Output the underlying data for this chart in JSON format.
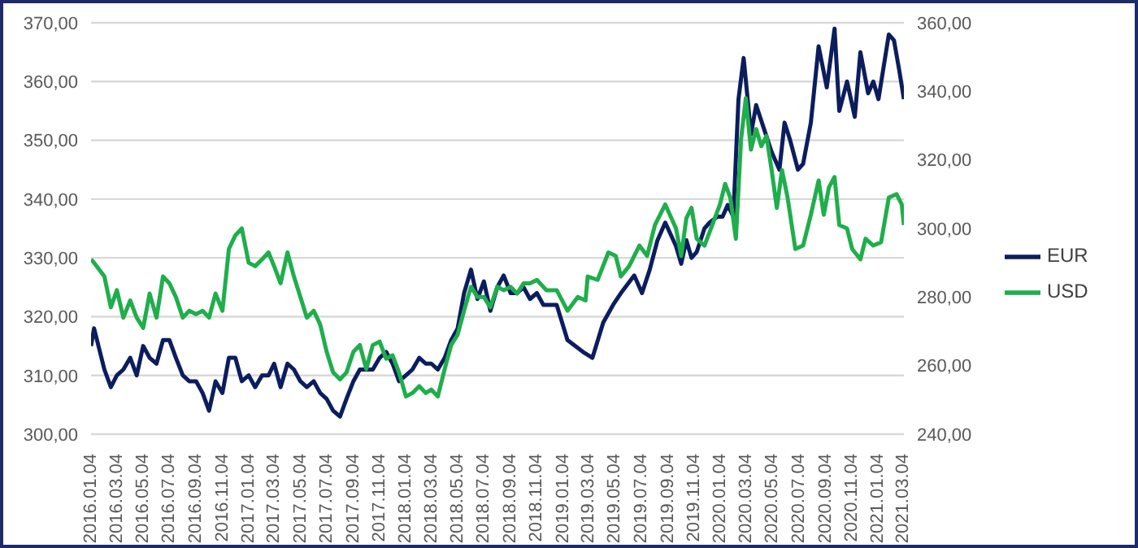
{
  "chart_data": {
    "type": "line",
    "xlim": [
      "2016-01-04",
      "2021-03-05"
    ],
    "xticks": [
      {
        "value": "2016-01-04",
        "label": "2016.01.04"
      },
      {
        "value": "2016-03-04",
        "label": "2016.03.04"
      },
      {
        "value": "2016-05-04",
        "label": "2016.05.04"
      },
      {
        "value": "2016-07-04",
        "label": "2016.07.04"
      },
      {
        "value": "2016-09-04",
        "label": "2016.09.04"
      },
      {
        "value": "2016-11-04",
        "label": "2016.11.04"
      },
      {
        "value": "2017-01-04",
        "label": "2017.01.04"
      },
      {
        "value": "2017-03-04",
        "label": "2017.03.04"
      },
      {
        "value": "2017-05-04",
        "label": "2017.05.04"
      },
      {
        "value": "2017-07-04",
        "label": "2017.07.04"
      },
      {
        "value": "2017-09-04",
        "label": "2017.09.04"
      },
      {
        "value": "2017-11-04",
        "label": "2017.11.04"
      },
      {
        "value": "2018-01-04",
        "label": "2018.01.04"
      },
      {
        "value": "2018-03-04",
        "label": "2018.03.04"
      },
      {
        "value": "2018-05-04",
        "label": "2018.05.04"
      },
      {
        "value": "2018-07-04",
        "label": "2018.07.04"
      },
      {
        "value": "2018-09-04",
        "label": "2018.09.04"
      },
      {
        "value": "2018-11-04",
        "label": "2018.11.04"
      },
      {
        "value": "2019-01-04",
        "label": "2019.01.04"
      },
      {
        "value": "2019-03-04",
        "label": "2019.03.04"
      },
      {
        "value": "2019-05-04",
        "label": "2019.05.04"
      },
      {
        "value": "2019-07-04",
        "label": "2019.07.04"
      },
      {
        "value": "2019-09-04",
        "label": "2019.09.04"
      },
      {
        "value": "2019-11-04",
        "label": "2019.11.04"
      },
      {
        "value": "2020-01-04",
        "label": "2020.01.04"
      },
      {
        "value": "2020-03-04",
        "label": "2020.03.04"
      },
      {
        "value": "2020-05-04",
        "label": "2020.05.04"
      },
      {
        "value": "2020-07-04",
        "label": "2020.07.04"
      },
      {
        "value": "2020-09-04",
        "label": "2020.09.04"
      },
      {
        "value": "2020-11-04",
        "label": "2020.11.04"
      },
      {
        "value": "2021-01-04",
        "label": "2021.01.04"
      },
      {
        "value": "2021-03-04",
        "label": "2021.03.04"
      }
    ],
    "ylim": [
      300,
      370
    ],
    "yticks": [
      {
        "value": 300,
        "label": "300,00"
      },
      {
        "value": 310,
        "label": "310,00"
      },
      {
        "value": 320,
        "label": "320,00"
      },
      {
        "value": 330,
        "label": "330,00"
      },
      {
        "value": 340,
        "label": "340,00"
      },
      {
        "value": 350,
        "label": "350,00"
      },
      {
        "value": 360,
        "label": "360,00"
      },
      {
        "value": 370,
        "label": "370,00"
      }
    ],
    "y2lim": [
      240,
      360
    ],
    "y2ticks": [
      {
        "value": 240,
        "label": "240,00"
      },
      {
        "value": 260,
        "label": "260,00"
      },
      {
        "value": 280,
        "label": "280,00"
      },
      {
        "value": 300,
        "label": "300,00"
      },
      {
        "value": 320,
        "label": "320,00"
      },
      {
        "value": 340,
        "label": "340,00"
      },
      {
        "value": 360,
        "label": "360,00"
      }
    ],
    "grid": "y",
    "legend": "right",
    "marker": "none",
    "series": [
      {
        "name": "EUR",
        "color": "#0c1d5e",
        "x": [
          "2016-01-04",
          "2016-01-11",
          "2016-02-04",
          "2016-02-19",
          "2016-03-04",
          "2016-03-19",
          "2016-04-04",
          "2016-04-19",
          "2016-05-04",
          "2016-05-19",
          "2016-06-04",
          "2016-06-19",
          "2016-07-04",
          "2016-07-19",
          "2016-08-04",
          "2016-08-19",
          "2016-09-04",
          "2016-09-19",
          "2016-10-04",
          "2016-10-19",
          "2016-11-04",
          "2016-11-19",
          "2016-12-04",
          "2016-12-19",
          "2017-01-04",
          "2017-01-19",
          "2017-02-04",
          "2017-02-19",
          "2017-03-04",
          "2017-03-19",
          "2017-04-04",
          "2017-04-19",
          "2017-05-04",
          "2017-05-19",
          "2017-06-04",
          "2017-06-19",
          "2017-07-04",
          "2017-07-19",
          "2017-08-04",
          "2017-08-19",
          "2017-09-04",
          "2017-09-19",
          "2017-10-04",
          "2017-10-19",
          "2017-11-04",
          "2017-11-19",
          "2017-12-04",
          "2017-12-19",
          "2018-01-04",
          "2018-01-19",
          "2018-02-04",
          "2018-02-19",
          "2018-03-04",
          "2018-03-19",
          "2018-04-04",
          "2018-04-19",
          "2018-05-04",
          "2018-05-19",
          "2018-06-04",
          "2018-06-19",
          "2018-07-04",
          "2018-07-19",
          "2018-08-04",
          "2018-08-19",
          "2018-09-04",
          "2018-09-19",
          "2018-10-04",
          "2018-10-19",
          "2018-11-04",
          "2018-11-19",
          "2018-12-20",
          "2019-01-14",
          "2019-02-19",
          "2019-03-13",
          "2019-04-07",
          "2019-04-30",
          "2019-05-18",
          "2019-06-18",
          "2019-07-06",
          "2019-07-24",
          "2019-08-11",
          "2019-08-29",
          "2019-09-23",
          "2019-10-05",
          "2019-10-17",
          "2019-10-29",
          "2019-11-10",
          "2019-11-28",
          "2019-12-10",
          "2019-12-28",
          "2020-01-09",
          "2020-01-21",
          "2020-02-03",
          "2020-02-15",
          "2020-02-27",
          "2020-03-06",
          "2020-03-15",
          "2020-03-27",
          "2020-04-14",
          "2020-05-02",
          "2020-05-20",
          "2020-06-01",
          "2020-06-14",
          "2020-07-02",
          "2020-07-14",
          "2020-08-01",
          "2020-08-19",
          "2020-09-07",
          "2020-09-25",
          "2020-10-06",
          "2020-10-24",
          "2020-11-11",
          "2020-11-24",
          "2020-12-12",
          "2020-12-24",
          "2021-01-05",
          "2021-01-29",
          "2021-02-10",
          "2021-02-22",
          "2021-03-05"
        ],
        "values": [
          315,
          318,
          311,
          308,
          310,
          311,
          313,
          310,
          315,
          313,
          312,
          316,
          316,
          313,
          310,
          309,
          309,
          307,
          304,
          309,
          307,
          313,
          313,
          309,
          310,
          308,
          310,
          310,
          312,
          308,
          312,
          311,
          309,
          308,
          309,
          307,
          306,
          304,
          303,
          306,
          309,
          311,
          311,
          311,
          313,
          314,
          312,
          309,
          310,
          311,
          313,
          312,
          312,
          311,
          313,
          316,
          318,
          324,
          328,
          323,
          326,
          321,
          325,
          327,
          324,
          324,
          325,
          323,
          324,
          322,
          322,
          316,
          314,
          313,
          319,
          322,
          324,
          327,
          324,
          328,
          333,
          336,
          332,
          329,
          333,
          330,
          331,
          335,
          336,
          337,
          337,
          339,
          337,
          357,
          364,
          358,
          351,
          356,
          352,
          348,
          345,
          353,
          350,
          345,
          346,
          353,
          366,
          359,
          369,
          355,
          360,
          354,
          365,
          358,
          360,
          357,
          368,
          367,
          362,
          357
        ]
      },
      {
        "name": "USD",
        "color": "#1fae4b",
        "axis": "y2",
        "x": [
          "2016-01-04",
          "2016-01-11",
          "2016-02-04",
          "2016-02-19",
          "2016-03-04",
          "2016-03-19",
          "2016-04-04",
          "2016-04-19",
          "2016-05-04",
          "2016-05-19",
          "2016-06-04",
          "2016-06-19",
          "2016-07-04",
          "2016-07-19",
          "2016-08-04",
          "2016-08-19",
          "2016-09-04",
          "2016-09-19",
          "2016-10-04",
          "2016-10-19",
          "2016-11-04",
          "2016-11-19",
          "2016-12-04",
          "2016-12-19",
          "2017-01-04",
          "2017-01-19",
          "2017-02-04",
          "2017-02-19",
          "2017-03-04",
          "2017-03-19",
          "2017-04-04",
          "2017-04-19",
          "2017-05-04",
          "2017-05-19",
          "2017-06-04",
          "2017-06-19",
          "2017-07-04",
          "2017-07-19",
          "2017-08-04",
          "2017-08-19",
          "2017-09-04",
          "2017-09-19",
          "2017-10-04",
          "2017-10-19",
          "2017-11-04",
          "2017-11-19",
          "2017-12-04",
          "2017-12-19",
          "2018-01-04",
          "2018-01-19",
          "2018-02-04",
          "2018-02-19",
          "2018-03-04",
          "2018-03-19",
          "2018-04-04",
          "2018-04-19",
          "2018-05-04",
          "2018-05-19",
          "2018-06-04",
          "2018-06-19",
          "2018-07-04",
          "2018-07-19",
          "2018-08-04",
          "2018-08-19",
          "2018-09-04",
          "2018-09-19",
          "2018-10-04",
          "2018-10-19",
          "2018-11-04",
          "2018-11-26",
          "2018-12-20",
          "2019-01-14",
          "2019-02-07",
          "2019-02-25",
          "2019-03-02",
          "2019-03-25",
          "2019-04-19",
          "2019-05-06",
          "2019-05-18",
          "2019-06-06",
          "2019-06-30",
          "2019-07-18",
          "2019-08-05",
          "2019-08-29",
          "2019-09-23",
          "2019-10-05",
          "2019-10-17",
          "2019-10-29",
          "2019-11-10",
          "2019-11-28",
          "2019-12-16",
          "2020-01-03",
          "2020-01-15",
          "2020-01-27",
          "2020-02-09",
          "2020-02-21",
          "2020-03-03",
          "2020-03-15",
          "2020-03-27",
          "2020-04-08",
          "2020-04-20",
          "2020-05-02",
          "2020-05-14",
          "2020-05-26",
          "2020-06-08",
          "2020-06-26",
          "2020-07-14",
          "2020-08-01",
          "2020-08-19",
          "2020-08-31",
          "2020-09-12",
          "2020-09-25",
          "2020-10-06",
          "2020-10-24",
          "2020-11-05",
          "2020-11-24",
          "2020-12-06",
          "2020-12-24",
          "2021-01-11",
          "2021-01-29",
          "2021-02-16",
          "2021-02-28",
          "2021-03-05"
        ],
        "values": [
          291,
          290,
          286,
          277,
          282,
          274,
          279,
          274,
          271,
          281,
          274,
          286,
          284,
          280,
          274,
          276,
          275,
          276,
          274,
          281,
          276,
          294,
          298,
          300,
          290,
          289,
          291,
          293,
          289,
          284,
          293,
          286,
          280,
          274,
          276,
          272,
          264,
          258,
          256,
          258,
          264,
          266,
          259,
          266,
          267,
          262,
          263,
          258,
          251,
          252,
          254,
          252,
          253,
          251,
          259,
          266,
          269,
          276,
          283,
          280,
          280,
          277,
          283,
          282,
          283,
          281,
          284,
          284,
          285,
          282,
          282,
          276,
          280,
          279,
          286,
          285,
          293,
          292,
          286,
          289,
          295,
          292,
          301,
          307,
          300,
          292,
          303,
          306,
          297,
          295,
          301,
          307,
          313,
          309,
          297,
          326,
          338,
          323,
          329,
          324,
          327,
          317,
          306,
          317,
          309,
          294,
          295,
          304,
          314,
          304,
          312,
          315,
          301,
          300,
          294,
          291,
          297,
          295,
          296,
          309,
          310,
          307,
          301
        ]
      }
    ]
  }
}
